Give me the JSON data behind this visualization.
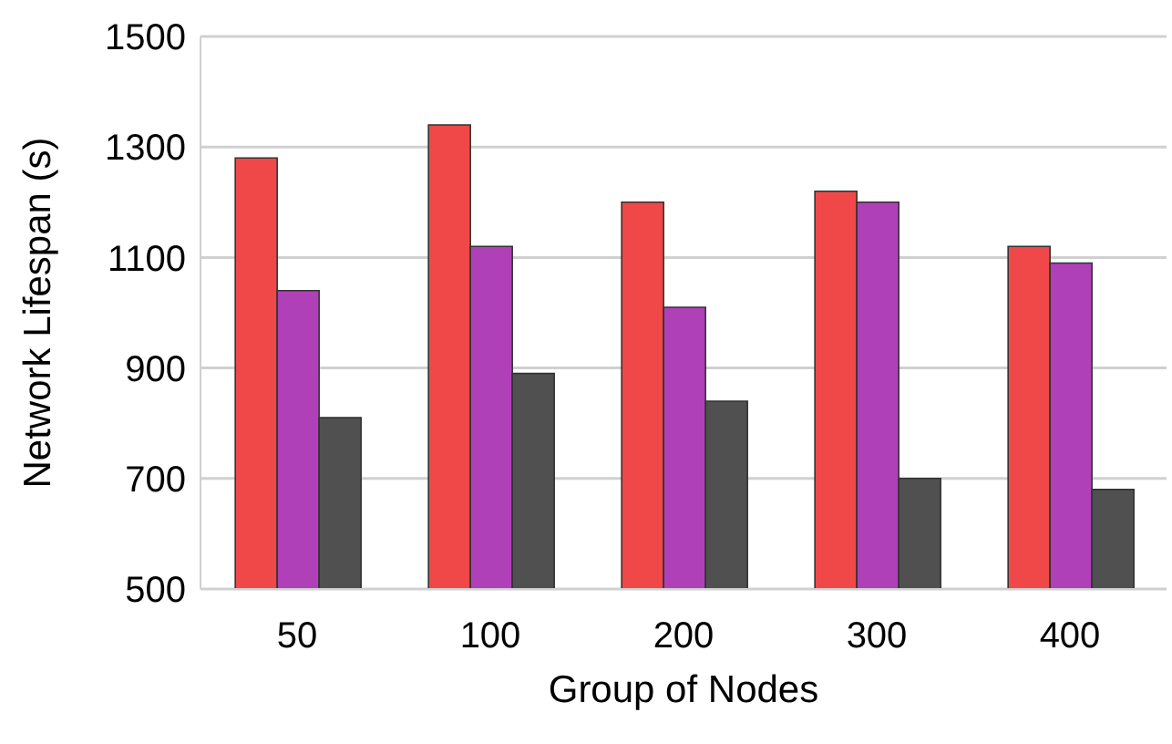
{
  "chart_data": {
    "type": "bar",
    "xlabel": "Group of Nodes",
    "ylabel": "Network Lifespan (s)",
    "categories": [
      "50",
      "100",
      "200",
      "300",
      "400"
    ],
    "series": [
      {
        "color": "#f04848",
        "values": [
          1280,
          1340,
          1200,
          1220,
          1120
        ]
      },
      {
        "color": "#b040b8",
        "values": [
          1040,
          1120,
          1010,
          1200,
          1090
        ]
      },
      {
        "color": "#505050",
        "values": [
          810,
          890,
          840,
          700,
          680
        ]
      }
    ],
    "ylim": [
      500,
      1500
    ],
    "yticks": [
      500,
      700,
      900,
      1100,
      1300,
      1500
    ],
    "grid": "y",
    "legend": false
  }
}
